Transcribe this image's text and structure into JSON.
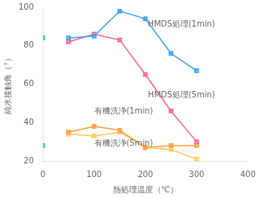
{
  "chart_data": {
    "type": "line",
    "xlabel": "熱処理温度（℃）",
    "ylabel": "純水接触角（°）",
    "xlim": [
      0,
      400
    ],
    "ylim": [
      20,
      100
    ],
    "xticks": [
      0,
      100,
      200,
      300,
      400
    ],
    "yticks": [
      20,
      40,
      60,
      80,
      100
    ],
    "grid": false,
    "marker": "square",
    "series": [
      {
        "name": "HMDS処理(1min)",
        "x": [
          50,
          100,
          150,
          200,
          250,
          300
        ],
        "values": [
          84,
          85,
          98,
          94,
          76,
          67
        ]
      },
      {
        "name": "HMDS処理(5min)",
        "x": [
          50,
          100,
          150,
          200,
          250,
          300
        ],
        "values": [
          82,
          86,
          83,
          65,
          46,
          30
        ]
      },
      {
        "name": "有機洗浄(1min)",
        "x": [
          50,
          100,
          150,
          200,
          250,
          300
        ],
        "values": [
          35,
          38,
          36,
          27,
          28,
          28
        ]
      },
      {
        "name": "有機洗浄(5min)",
        "x": [
          50,
          100,
          150,
          200,
          250,
          300
        ],
        "values": [
          34,
          33,
          35,
          27,
          26,
          21
        ]
      },
      {
        "type": "scatter",
        "x": [
          0,
          0
        ],
        "values": [
          84,
          28
        ]
      }
    ],
    "annotations": [
      {
        "text": "HMDS処理(1min)",
        "x": 205,
        "y": 91
      },
      {
        "text": "HMDS処理(5min)",
        "x": 205,
        "y": 54
      },
      {
        "text": "有機洗浄(1min)",
        "x": 100,
        "y": 46
      },
      {
        "text": "有機洗浄(5min)",
        "x": 100,
        "y": 29
      }
    ]
  }
}
